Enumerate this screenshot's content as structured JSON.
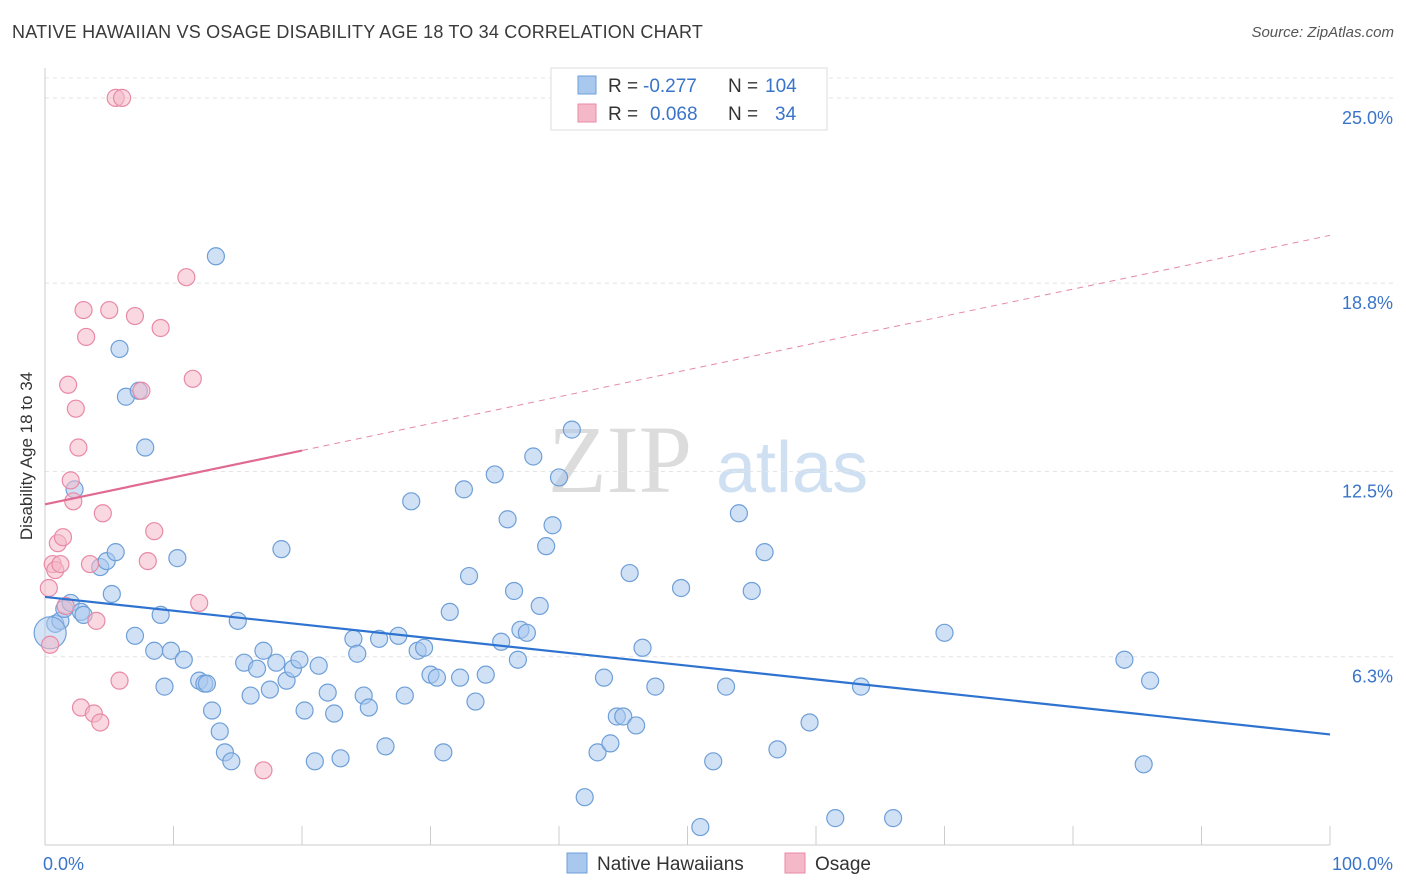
{
  "chart_data": {
    "type": "scatter",
    "title": "NATIVE HAWAIIAN VS OSAGE DISABILITY AGE 18 TO 34 CORRELATION CHART",
    "source": "Source: ZipAtlas.com",
    "xlabel": "",
    "ylabel": "Disability Age 18 to 34",
    "xlim": [
      0,
      100
    ],
    "ylim": [
      0,
      26
    ],
    "x_tick_labels": [
      "0.0%",
      "100.0%"
    ],
    "y_ticks": [
      6.3,
      12.5,
      18.8,
      25.0
    ],
    "y_tick_labels": [
      "6.3%",
      "12.5%",
      "18.8%",
      "25.0%"
    ],
    "watermark": {
      "zip": "ZIP",
      "atlas": "atlas"
    },
    "legend": {
      "rows": [
        {
          "r_label": "R =",
          "r_value": "-0.277",
          "n_label": "N =",
          "n_value": "104"
        },
        {
          "r_label": "R =",
          "r_value": "0.068",
          "n_label": "N =",
          "n_value": "34"
        }
      ]
    },
    "series": [
      {
        "name": "Native Hawaiians",
        "color": "#a9c8ee",
        "stroke": "#6e9fd8",
        "trend": {
          "x0": 0,
          "y0": 8.3,
          "x1": 100,
          "y1": 3.7,
          "color": "#2f73d0",
          "dashed_from": null
        },
        "points": [
          [
            0.8,
            7.4
          ],
          [
            1.2,
            7.5
          ],
          [
            1.5,
            7.9
          ],
          [
            2.0,
            8.1
          ],
          [
            2.3,
            11.9
          ],
          [
            2.8,
            7.8
          ],
          [
            3.0,
            7.7
          ],
          [
            4.3,
            9.3
          ],
          [
            4.8,
            9.5
          ],
          [
            5.2,
            8.4
          ],
          [
            5.5,
            9.8
          ],
          [
            5.8,
            16.6
          ],
          [
            6.3,
            15.0
          ],
          [
            7.0,
            7.0
          ],
          [
            7.3,
            15.2
          ],
          [
            7.8,
            13.3
          ],
          [
            8.5,
            6.5
          ],
          [
            9.0,
            7.7
          ],
          [
            9.3,
            5.3
          ],
          [
            9.8,
            6.5
          ],
          [
            10.3,
            9.6
          ],
          [
            10.8,
            6.2
          ],
          [
            12.0,
            5.5
          ],
          [
            12.4,
            5.4
          ],
          [
            12.6,
            5.4
          ],
          [
            13.0,
            4.5
          ],
          [
            13.3,
            19.7
          ],
          [
            13.6,
            3.8
          ],
          [
            14.0,
            3.1
          ],
          [
            14.5,
            2.8
          ],
          [
            15.0,
            7.5
          ],
          [
            15.5,
            6.1
          ],
          [
            16.0,
            5.0
          ],
          [
            16.5,
            5.9
          ],
          [
            17.0,
            6.5
          ],
          [
            17.5,
            5.2
          ],
          [
            18.0,
            6.1
          ],
          [
            18.4,
            9.9
          ],
          [
            18.8,
            5.5
          ],
          [
            19.3,
            5.9
          ],
          [
            19.8,
            6.2
          ],
          [
            20.2,
            4.5
          ],
          [
            21.0,
            2.8
          ],
          [
            21.3,
            6.0
          ],
          [
            22.0,
            5.1
          ],
          [
            22.5,
            4.4
          ],
          [
            23.0,
            2.9
          ],
          [
            24.0,
            6.9
          ],
          [
            24.3,
            6.4
          ],
          [
            24.8,
            5.0
          ],
          [
            25.2,
            4.6
          ],
          [
            26.0,
            6.9
          ],
          [
            26.5,
            3.3
          ],
          [
            27.5,
            7.0
          ],
          [
            28.0,
            5.0
          ],
          [
            28.5,
            11.5
          ],
          [
            29.0,
            6.5
          ],
          [
            29.5,
            6.6
          ],
          [
            30.0,
            5.7
          ],
          [
            30.5,
            5.6
          ],
          [
            31.0,
            3.1
          ],
          [
            31.5,
            7.8
          ],
          [
            32.3,
            5.6
          ],
          [
            32.6,
            11.9
          ],
          [
            33.0,
            9.0
          ],
          [
            33.5,
            4.8
          ],
          [
            34.3,
            5.7
          ],
          [
            35.0,
            12.4
          ],
          [
            35.5,
            6.8
          ],
          [
            36.0,
            10.9
          ],
          [
            36.5,
            8.5
          ],
          [
            36.8,
            6.2
          ],
          [
            37.0,
            7.2
          ],
          [
            37.5,
            7.1
          ],
          [
            38.0,
            13.0
          ],
          [
            38.5,
            8.0
          ],
          [
            39.0,
            10.0
          ],
          [
            39.5,
            10.7
          ],
          [
            40.0,
            12.3
          ],
          [
            41.0,
            13.9
          ],
          [
            42.0,
            1.6
          ],
          [
            43.0,
            3.1
          ],
          [
            43.5,
            5.6
          ],
          [
            44.0,
            3.4
          ],
          [
            44.5,
            4.3
          ],
          [
            45.0,
            4.3
          ],
          [
            45.5,
            9.1
          ],
          [
            46.0,
            4.0
          ],
          [
            46.5,
            6.6
          ],
          [
            47.5,
            5.3
          ],
          [
            49.5,
            8.6
          ],
          [
            51.0,
            0.6
          ],
          [
            52.0,
            2.8
          ],
          [
            53.0,
            5.3
          ],
          [
            54.0,
            11.1
          ],
          [
            55.0,
            8.5
          ],
          [
            56.0,
            9.8
          ],
          [
            57.0,
            3.2
          ],
          [
            59.5,
            4.1
          ],
          [
            61.5,
            0.9
          ],
          [
            63.5,
            5.3
          ],
          [
            66.0,
            0.9
          ],
          [
            70.0,
            7.1
          ],
          [
            84.0,
            6.2
          ],
          [
            85.5,
            2.7
          ],
          [
            86.0,
            5.5
          ]
        ]
      },
      {
        "name": "Osage",
        "color": "#f4b8c8",
        "stroke": "#e88aa6",
        "trend": {
          "x0": 0,
          "y0": 11.4,
          "x1": 100,
          "y1": 20.4,
          "color": "#e06a92",
          "dashed_from": 20
        },
        "points": [
          [
            0.3,
            8.6
          ],
          [
            0.4,
            6.7
          ],
          [
            0.6,
            9.4
          ],
          [
            0.8,
            9.2
          ],
          [
            1.0,
            10.1
          ],
          [
            1.2,
            9.4
          ],
          [
            1.4,
            10.3
          ],
          [
            1.6,
            8.0
          ],
          [
            1.8,
            15.4
          ],
          [
            2.0,
            12.2
          ],
          [
            2.2,
            11.5
          ],
          [
            2.4,
            14.6
          ],
          [
            2.6,
            13.3
          ],
          [
            2.8,
            4.6
          ],
          [
            3.0,
            17.9
          ],
          [
            3.2,
            17.0
          ],
          [
            3.5,
            9.4
          ],
          [
            3.8,
            4.4
          ],
          [
            4.0,
            7.5
          ],
          [
            4.3,
            4.1
          ],
          [
            4.5,
            11.1
          ],
          [
            5.0,
            17.9
          ],
          [
            5.5,
            25.0
          ],
          [
            5.8,
            5.5
          ],
          [
            6.0,
            25.0
          ],
          [
            7.0,
            17.7
          ],
          [
            7.5,
            15.2
          ],
          [
            8.0,
            9.5
          ],
          [
            8.5,
            10.5
          ],
          [
            9.0,
            17.3
          ],
          [
            11.0,
            19.0
          ],
          [
            11.5,
            15.6
          ],
          [
            12.0,
            8.1
          ],
          [
            17.0,
            2.5
          ]
        ]
      }
    ]
  },
  "bottom_legend": [
    {
      "label": "Native Hawaiians",
      "color": "#a9c8ee",
      "stroke": "#6e9fd8"
    },
    {
      "label": "Osage",
      "color": "#f4b8c8",
      "stroke": "#e88aa6"
    }
  ]
}
